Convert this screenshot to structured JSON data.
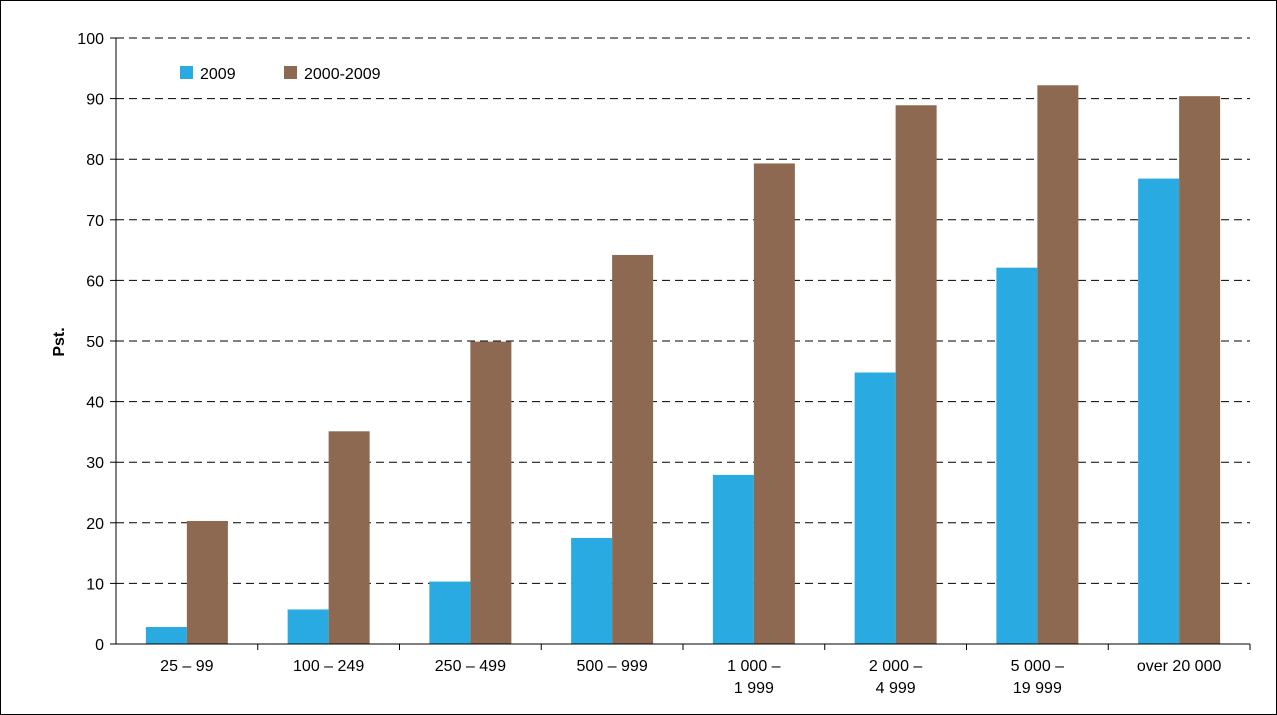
{
  "chart_data": {
    "type": "bar",
    "title": "",
    "xlabel": "",
    "ylabel": "Pst.",
    "ylim": [
      0,
      100
    ],
    "yticks": [
      0,
      10,
      20,
      30,
      40,
      50,
      60,
      70,
      80,
      90,
      100
    ],
    "grid": true,
    "legend_position": "top-left",
    "categories": [
      [
        "25 – 99"
      ],
      [
        "100 – 249"
      ],
      [
        "250 – 499"
      ],
      [
        "500 – 999"
      ],
      [
        "1 000 –",
        "1 999"
      ],
      [
        "2 000 –",
        "4 999"
      ],
      [
        "5 000 –",
        "19 999"
      ],
      [
        "over 20 000"
      ]
    ],
    "series": [
      {
        "name": "2009",
        "color": "#29abe2",
        "values": [
          2.8,
          5.7,
          10.3,
          17.5,
          27.9,
          44.8,
          62.1,
          76.8
        ]
      },
      {
        "name": "2000-2009",
        "color": "#8c6950",
        "values": [
          20.3,
          35.1,
          49.9,
          64.2,
          79.3,
          88.9,
          92.2,
          90.4
        ]
      }
    ]
  }
}
